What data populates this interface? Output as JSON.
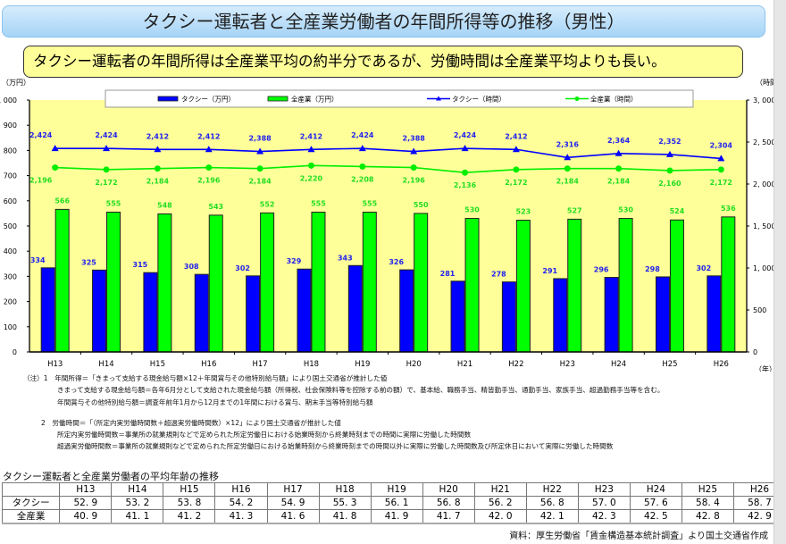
{
  "title": "タクシー運転者と全産業労働者の年間所得等の推移（男性）",
  "headline": "タクシー運転者の年間所得は全産業平均の約半分であるが、労働時間は全産業平均よりも長い。",
  "chart_data": {
    "type": "bar",
    "categories": [
      "H13",
      "H14",
      "H15",
      "H16",
      "H17",
      "H18",
      "H19",
      "H20",
      "H21",
      "H22",
      "H23",
      "H24",
      "H25",
      "H26"
    ],
    "series": [
      {
        "name": "タクシー（万円）",
        "kind": "bar",
        "axis": "left",
        "color": "#0000ff",
        "label_color": "#2222ee",
        "values": [
          334,
          325,
          315,
          308,
          302,
          329,
          343,
          326,
          281,
          278,
          291,
          296,
          298,
          302
        ]
      },
      {
        "name": "全産業（万円）",
        "kind": "bar",
        "axis": "left",
        "color": "#00ff00",
        "label_color": "#22dd22",
        "values": [
          566,
          555,
          548,
          543,
          552,
          555,
          555,
          550,
          530,
          523,
          527,
          530,
          524,
          536
        ]
      },
      {
        "name": "タクシー（時間）",
        "kind": "line",
        "marker": "triangle",
        "axis": "right",
        "color": "#0000ff",
        "label_color": "#2222ee",
        "values": [
          2424,
          2424,
          2412,
          2412,
          2388,
          2412,
          2424,
          2388,
          2424,
          2412,
          2316,
          2364,
          2352,
          2304
        ]
      },
      {
        "name": "全産業（時間）",
        "kind": "line",
        "marker": "circle",
        "axis": "right",
        "color": "#00ee00",
        "label_color": "#22dd22",
        "values": [
          2196,
          2172,
          2184,
          2196,
          2184,
          2220,
          2208,
          2196,
          2136,
          2172,
          2184,
          2184,
          2160,
          2172
        ]
      }
    ],
    "left_axis": {
      "label": "（万円）",
      "range": [
        0,
        1000
      ],
      "ticks": [
        "0",
        "100",
        "200",
        "300",
        "400",
        "500",
        "600",
        "700",
        "800",
        "900",
        "1, 000"
      ]
    },
    "right_axis": {
      "label": "（時間）",
      "range": [
        0,
        3000
      ],
      "ticks": [
        "0",
        "500",
        "1, 000",
        "1, 500",
        "2, 000",
        "2, 500",
        "3, 000"
      ]
    },
    "xlabel": "（年）",
    "legend": "top",
    "plot_background": "#ffff99",
    "grid": false
  },
  "notes": [
    "（注）1　年間所得＝「きまって支給する現金給与額×12＋年間賞与その他特別給与額」により国土交通省が推計した値",
    "きまって支給する現金給与額＝各年6月分として支給された現金給与額（所得税、社会保険料等を控除する前の額）で、基本給、職務手当、精皆勤手当、通勤手当、家族手当、超過勤務手当等を含む。",
    "年間賞与その他特別給与額＝調査年前年1月から12月までの1年間における賞与、期末手当等特別給与額",
    "2　労働時間＝「（所定内実労働時間数＋超過実労働時間数）×12」により国土交通省が推計した値",
    "所定内実労働時間数＝事業所の就業規則などで定められた所定労働日における始業時刻から終業時刻までの時間に実際に労働した時間数",
    "超過実労働時間数＝事業所の就業規則などで定められた所定労働日における始業時刻から終業時刻までの時間以外に実際に労働した時間数及び所定休日において実際に労働した時間数"
  ],
  "age_table": {
    "title": "タクシー運転者と全産業労働者の平均年齢の推移",
    "headers": [
      "H13",
      "H14",
      "H15",
      "H16",
      "H17",
      "H18",
      "H19",
      "H20",
      "H21",
      "H22",
      "H23",
      "H24",
      "H25",
      "H26"
    ],
    "rows": [
      {
        "label": "タクシー",
        "values": [
          "52. 9",
          "53. 2",
          "53. 8",
          "54. 2",
          "54. 9",
          "55. 3",
          "56. 1",
          "56. 8",
          "56. 2",
          "56. 8",
          "57. 0",
          "57. 6",
          "58. 4",
          "58. 7"
        ]
      },
      {
        "label": "全産業",
        "values": [
          "40. 9",
          "41. 1",
          "41. 2",
          "41. 3",
          "41. 6",
          "41. 8",
          "41. 9",
          "41. 7",
          "42. 0",
          "42. 1",
          "42. 3",
          "42. 5",
          "42. 8",
          "42. 9"
        ]
      }
    ]
  },
  "source": "資料：厚生労働省「賃金構造基本統計調査」より国土交通省作成"
}
